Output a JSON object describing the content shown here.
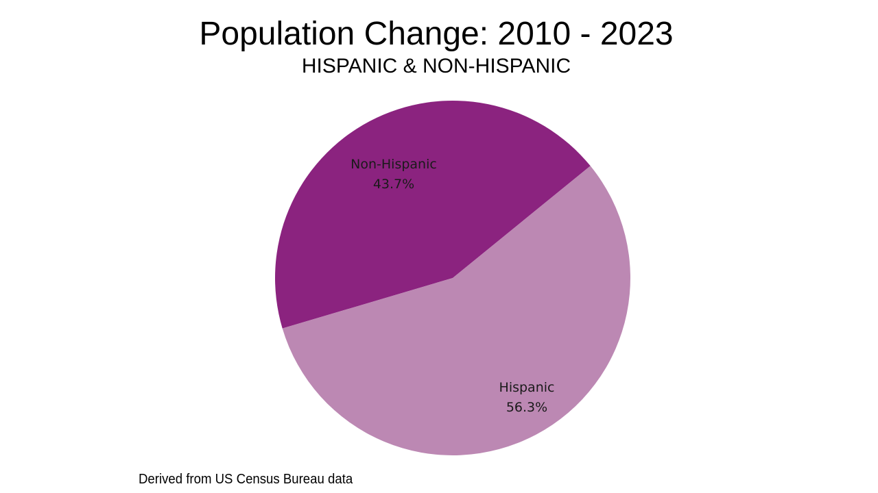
{
  "chart_data": {
    "type": "pie",
    "title": "Population Change: 2010 - 2023",
    "subtitle": "HISPANIC & NON-HISPANIC",
    "slices": [
      {
        "label": "Non-Hispanic",
        "value": 43.7,
        "value_label": "43.7%",
        "color": "#8b237f"
      },
      {
        "label": "Hispanic",
        "value": 56.3,
        "value_label": "56.3%",
        "color": "#bc88b3"
      }
    ],
    "legend": "none",
    "data_labels": "inside"
  },
  "source_note": "Derived from US Census Bureau data"
}
